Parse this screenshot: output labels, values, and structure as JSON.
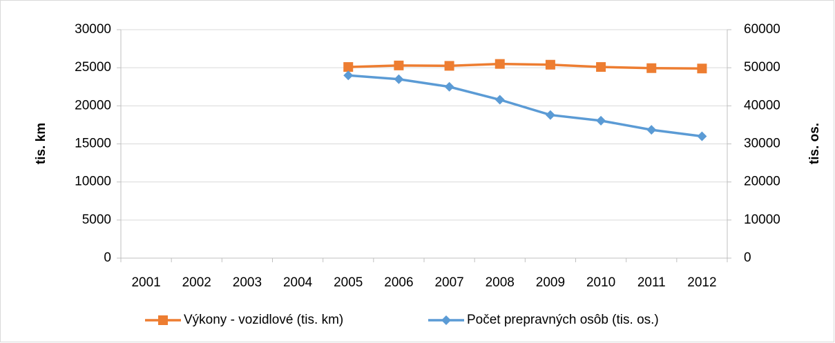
{
  "chart_data": {
    "type": "line",
    "categories": [
      "2001",
      "2002",
      "2003",
      "2004",
      "2005",
      "2006",
      "2007",
      "2008",
      "2009",
      "2010",
      "2011",
      "2012"
    ],
    "y_label": "tis. km",
    "y2_label": "tis. os.",
    "ylim": [
      0,
      30000
    ],
    "yticks": [
      0,
      5000,
      10000,
      15000,
      20000,
      25000,
      30000
    ],
    "y2lim": [
      0,
      60000
    ],
    "y2ticks": [
      0,
      10000,
      20000,
      30000,
      40000,
      50000,
      60000
    ],
    "grid": true,
    "legend": "bottom",
    "series": [
      {
        "name": "Výkony - vozidlové (tis. km)",
        "color": "#ed7d31",
        "marker": "square",
        "values": [
          null,
          null,
          null,
          null,
          25100,
          25300,
          25250,
          25500,
          25400,
          25100,
          24950,
          24900
        ]
      },
      {
        "name": "Počet prepravných osôb (tis. os.)",
        "color": "#5b9bd5",
        "marker": "diamond",
        "axis": "y2",
        "values": [
          null,
          null,
          null,
          null,
          48000,
          47000,
          45000,
          41600,
          37600,
          36100,
          33700,
          32000
        ]
      }
    ]
  }
}
